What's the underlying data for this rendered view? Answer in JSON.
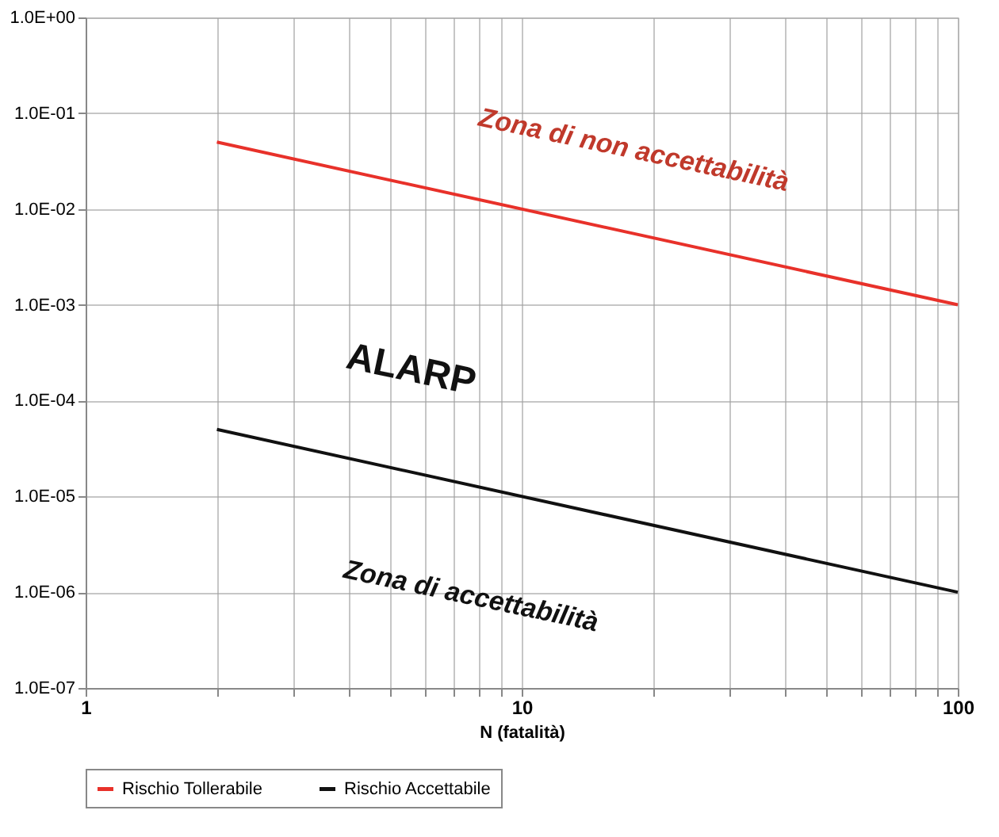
{
  "chart_data": {
    "type": "line",
    "xlabel": "N (fatalità)",
    "log": "xy",
    "grid": true,
    "legend": "bottom",
    "marker": "none",
    "line_style": "solid",
    "x": [
      2,
      100
    ],
    "xlim": [
      1,
      100
    ],
    "xticks": [
      1,
      {
        "value": 2,
        "label": null
      },
      {
        "value": 3,
        "label": null
      },
      {
        "value": 4,
        "label": null
      },
      {
        "value": 5,
        "label": null
      },
      {
        "value": 6,
        "label": null
      },
      {
        "value": 7,
        "label": null
      },
      {
        "value": 8,
        "label": null
      },
      {
        "value": 9,
        "label": null
      },
      10,
      {
        "value": 20,
        "label": null
      },
      {
        "value": 30,
        "label": null
      },
      {
        "value": 40,
        "label": null
      },
      {
        "value": 50,
        "label": null
      },
      {
        "value": 60,
        "label": null
      },
      {
        "value": 70,
        "label": null
      },
      {
        "value": 80,
        "label": null
      },
      {
        "value": 90,
        "label": null
      },
      100
    ],
    "ylim": [
      1e-07,
      1
    ],
    "yticks": [
      {
        "value": 1e-07,
        "label": "1.0E-07"
      },
      {
        "value": 1e-06,
        "label": "1.0E-06"
      },
      {
        "value": 1e-05,
        "label": "1.0E-05"
      },
      {
        "value": 0.0001,
        "label": "1.0E-04"
      },
      {
        "value": 0.001,
        "label": "1.0E-03"
      },
      {
        "value": 0.01,
        "label": "1.0E-02"
      },
      {
        "value": 0.1,
        "label": "1.0E-01"
      },
      {
        "value": 1,
        "label": "1.0E+00"
      }
    ],
    "series": [
      {
        "name": "Rischio Tollerabile",
        "color": "#e8312a",
        "values": [
          0.05,
          0.001
        ]
      },
      {
        "name": "Rischio Accettabile",
        "color": "#111111",
        "values": [
          5e-05,
          1e-06
        ]
      }
    ],
    "annotations": [
      "Zona di non accettabilità",
      "ALARP",
      "Zona di accettabilità"
    ]
  }
}
